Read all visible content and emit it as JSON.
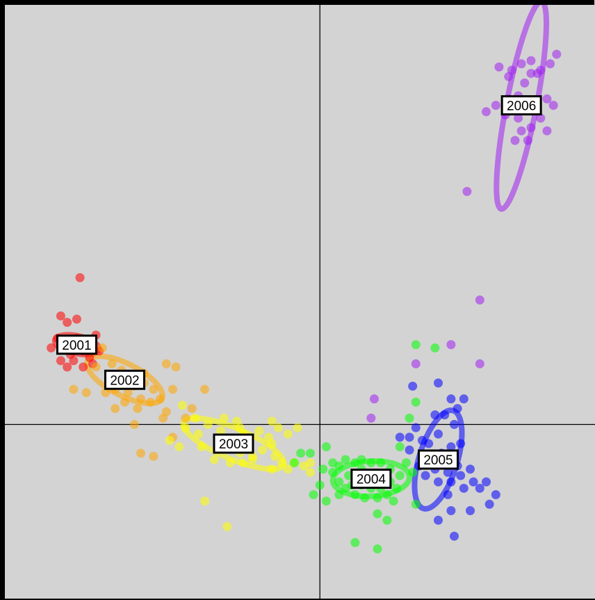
{
  "chart_data": {
    "type": "scatter",
    "background": "#d3d3d3",
    "axes_lines": "x=0 and y=0 reference lines",
    "grid": false,
    "xlim": [
      -1.0,
      0.86
    ],
    "ylim": [
      -0.55,
      1.33
    ],
    "series": [
      {
        "name": "2001",
        "color": "#ff0000",
        "center": [
          -0.76,
          0.25
        ],
        "ellipse": {
          "rx": 0.07,
          "ry": 0.028,
          "angle": 12
        },
        "points": [
          [
            -0.75,
            0.46
          ],
          [
            -0.81,
            0.34
          ],
          [
            -0.79,
            0.32
          ],
          [
            -0.76,
            0.33
          ],
          [
            -0.7,
            0.28
          ],
          [
            -0.8,
            0.24
          ],
          [
            -0.78,
            0.22
          ],
          [
            -0.74,
            0.23
          ],
          [
            -0.72,
            0.21
          ],
          [
            -0.77,
            0.2
          ],
          [
            -0.79,
            0.18
          ],
          [
            -0.74,
            0.18
          ],
          [
            -0.73,
            0.26
          ],
          [
            -0.82,
            0.27
          ],
          [
            -0.84,
            0.24
          ],
          [
            -0.69,
            0.23
          ],
          [
            -0.81,
            0.2
          ],
          [
            -0.71,
            0.19
          ],
          [
            -0.76,
            0.27
          ]
        ]
      },
      {
        "name": "2002",
        "color": "#ffa500",
        "center": [
          -0.61,
          0.14
        ],
        "ellipse": {
          "rx": 0.13,
          "ry": 0.05,
          "angle": 27
        },
        "points": [
          [
            -0.68,
            0.24
          ],
          [
            -0.7,
            0.18
          ],
          [
            -0.65,
            0.19
          ],
          [
            -0.63,
            0.14
          ],
          [
            -0.58,
            0.12
          ],
          [
            -0.55,
            0.13
          ],
          [
            -0.52,
            0.11
          ],
          [
            -0.56,
            0.08
          ],
          [
            -0.6,
            0.1
          ],
          [
            -0.64,
            0.11
          ],
          [
            -0.67,
            0.1
          ],
          [
            -0.73,
            0.1
          ],
          [
            -0.77,
            0.11
          ],
          [
            -0.61,
            0.07
          ],
          [
            -0.57,
            0.05
          ],
          [
            -0.53,
            0.07
          ],
          [
            -0.5,
            0.08
          ],
          [
            -0.46,
            0.11
          ],
          [
            -0.45,
            0.18
          ],
          [
            -0.48,
            0.19
          ],
          [
            -0.4,
            0.05
          ],
          [
            -0.36,
            0.11
          ],
          [
            -0.62,
            0.17
          ],
          [
            -0.66,
            0.15
          ],
          [
            -0.55,
            0.16
          ],
          [
            -0.64,
            0.05
          ],
          [
            -0.48,
            0.04
          ],
          [
            -0.58,
            0.0
          ],
          [
            -0.56,
            -0.09
          ],
          [
            -0.52,
            -0.1
          ],
          [
            -0.49,
            0.02
          ],
          [
            -0.42,
            0.02
          ],
          [
            -0.46,
            -0.04
          ]
        ]
      },
      {
        "name": "2003",
        "color": "#ffff00",
        "center": [
          -0.27,
          -0.06
        ],
        "ellipse": {
          "rx": 0.17,
          "ry": 0.048,
          "angle": 23
        },
        "points": [
          [
            -0.43,
            0.06
          ],
          [
            -0.39,
            0.02
          ],
          [
            -0.42,
            -0.01
          ],
          [
            -0.38,
            -0.03
          ],
          [
            -0.35,
            -0.0
          ],
          [
            -0.31,
            -0.02
          ],
          [
            -0.32,
            -0.07
          ],
          [
            -0.28,
            -0.06
          ],
          [
            -0.24,
            -0.03
          ],
          [
            -0.22,
            -0.05
          ],
          [
            -0.25,
            -0.09
          ],
          [
            -0.21,
            -0.1
          ],
          [
            -0.18,
            -0.08
          ],
          [
            -0.16,
            -0.04
          ],
          [
            -0.19,
            -0.02
          ],
          [
            -0.14,
            -0.1
          ],
          [
            -0.12,
            -0.12
          ],
          [
            -0.15,
            -0.14
          ],
          [
            -0.1,
            -0.14
          ],
          [
            -0.08,
            -0.12
          ],
          [
            -0.05,
            -0.13
          ],
          [
            -0.28,
            -0.12
          ],
          [
            -0.33,
            -0.11
          ],
          [
            -0.37,
            -0.07
          ],
          [
            -0.44,
            -0.07
          ],
          [
            -0.47,
            -0.05
          ],
          [
            -0.26,
            0.01
          ],
          [
            -0.3,
            0.02
          ],
          [
            -0.25,
            -0.01
          ],
          [
            -0.15,
            0.01
          ],
          [
            -0.13,
            -0.01
          ],
          [
            -0.1,
            -0.03
          ],
          [
            -0.07,
            -0.01
          ],
          [
            -0.03,
            -0.12
          ],
          [
            -0.36,
            -0.24
          ],
          [
            -0.29,
            -0.32
          ],
          [
            -0.21,
            -0.11
          ],
          [
            -0.24,
            -0.12
          ],
          [
            -0.03,
            -0.15
          ],
          [
            -0.15,
            -0.06
          ]
        ]
      },
      {
        "name": "2004",
        "color": "#00ff00",
        "center": [
          0.16,
          -0.17
        ],
        "ellipse": {
          "rx": 0.12,
          "ry": 0.055,
          "angle": -3
        },
        "points": [
          [
            0.06,
            -0.13
          ],
          [
            0.08,
            -0.11
          ],
          [
            0.11,
            -0.12
          ],
          [
            0.13,
            -0.11
          ],
          [
            0.16,
            -0.12
          ],
          [
            0.19,
            -0.12
          ],
          [
            0.22,
            -0.14
          ],
          [
            0.25,
            -0.16
          ],
          [
            0.24,
            -0.2
          ],
          [
            0.21,
            -0.22
          ],
          [
            0.18,
            -0.23
          ],
          [
            0.14,
            -0.23
          ],
          [
            0.11,
            -0.22
          ],
          [
            0.08,
            -0.2
          ],
          [
            0.06,
            -0.18
          ],
          [
            0.09,
            -0.16
          ],
          [
            0.12,
            -0.16
          ],
          [
            0.15,
            -0.17
          ],
          [
            0.18,
            -0.18
          ],
          [
            0.2,
            -0.17
          ],
          [
            0.13,
            -0.19
          ],
          [
            0.1,
            -0.19
          ],
          [
            0.16,
            -0.2
          ],
          [
            0.19,
            -0.2
          ],
          [
            0.22,
            -0.18
          ],
          [
            0.04,
            -0.15
          ],
          [
            0.01,
            -0.14
          ],
          [
            0.0,
            -0.19
          ],
          [
            -0.02,
            -0.22
          ],
          [
            0.02,
            -0.07
          ],
          [
            -0.03,
            -0.09
          ],
          [
            -0.06,
            -0.09
          ],
          [
            -0.08,
            -0.12
          ],
          [
            0.02,
            -0.24
          ],
          [
            0.18,
            -0.28
          ],
          [
            0.23,
            -0.24
          ],
          [
            0.21,
            -0.3
          ],
          [
            0.25,
            -0.07
          ],
          [
            0.27,
            -0.12
          ],
          [
            0.29,
            -0.15
          ],
          [
            0.3,
            -0.25
          ],
          [
            0.28,
            0.02
          ],
          [
            0.3,
            0.07
          ],
          [
            0.3,
            0.25
          ],
          [
            0.36,
            0.24
          ],
          [
            0.11,
            -0.37
          ],
          [
            0.18,
            -0.39
          ],
          [
            0.06,
            -0.22
          ],
          [
            0.13,
            -0.14
          ],
          [
            0.04,
            -0.12
          ]
        ]
      },
      {
        "name": "2005",
        "color": "#0000ff",
        "center": [
          0.37,
          -0.11
        ],
        "ellipse": {
          "rx": 0.16,
          "ry": 0.06,
          "angle": -73
        },
        "points": [
          [
            0.41,
            0.08
          ],
          [
            0.45,
            0.08
          ],
          [
            0.43,
            0.05
          ],
          [
            0.39,
            0.03
          ],
          [
            0.42,
            0.0
          ],
          [
            0.37,
            -0.03
          ],
          [
            0.32,
            -0.05
          ],
          [
            0.34,
            -0.1
          ],
          [
            0.38,
            -0.09
          ],
          [
            0.41,
            -0.07
          ],
          [
            0.44,
            -0.06
          ],
          [
            0.42,
            -0.11
          ],
          [
            0.4,
            -0.15
          ],
          [
            0.36,
            -0.14
          ],
          [
            0.33,
            -0.16
          ],
          [
            0.37,
            -0.18
          ],
          [
            0.41,
            -0.18
          ],
          [
            0.44,
            -0.16
          ],
          [
            0.47,
            -0.14
          ],
          [
            0.48,
            -0.18
          ],
          [
            0.45,
            -0.2
          ],
          [
            0.5,
            -0.2
          ],
          [
            0.52,
            -0.18
          ],
          [
            0.55,
            -0.22
          ],
          [
            0.53,
            -0.25
          ],
          [
            0.28,
            -0.04
          ],
          [
            0.25,
            -0.04
          ],
          [
            0.28,
            -0.08
          ],
          [
            0.31,
            -0.13
          ],
          [
            0.3,
            -0.01
          ],
          [
            0.36,
            0.03
          ],
          [
            0.4,
            -0.22
          ],
          [
            0.37,
            -0.3
          ],
          [
            0.41,
            -0.27
          ],
          [
            0.42,
            -0.35
          ],
          [
            0.47,
            -0.27
          ],
          [
            0.29,
            0.12
          ],
          [
            0.37,
            0.13
          ],
          [
            0.39,
            -0.12
          ],
          [
            0.34,
            -0.06
          ],
          [
            0.36,
            -0.12
          ],
          [
            0.43,
            -0.13
          ]
        ]
      },
      {
        "name": "2006",
        "color": "#a020f0",
        "center": [
          0.63,
          1.0
        ],
        "ellipse": {
          "rx": 0.33,
          "ry": 0.047,
          "angle": -79
        },
        "points": [
          [
            0.56,
            1.12
          ],
          [
            0.6,
            1.11
          ],
          [
            0.63,
            1.13
          ],
          [
            0.66,
            1.14
          ],
          [
            0.68,
            1.1
          ],
          [
            0.64,
            1.07
          ],
          [
            0.62,
            1.03
          ],
          [
            0.59,
            1.02
          ],
          [
            0.55,
            1.0
          ],
          [
            0.58,
            0.97
          ],
          [
            0.62,
            0.96
          ],
          [
            0.65,
            0.99
          ],
          [
            0.68,
            1.01
          ],
          [
            0.71,
            1.02
          ],
          [
            0.69,
            0.96
          ],
          [
            0.66,
            0.93
          ],
          [
            0.63,
            0.92
          ],
          [
            0.61,
            0.89
          ],
          [
            0.65,
            0.89
          ],
          [
            0.71,
            0.92
          ],
          [
            0.73,
            1.0
          ],
          [
            0.72,
            1.13
          ],
          [
            0.74,
            1.16
          ],
          [
            0.69,
            1.11
          ],
          [
            0.59,
            1.09
          ],
          [
            0.52,
            0.98
          ],
          [
            0.66,
            1.1
          ],
          [
            0.62,
            1.0
          ],
          [
            0.46,
            0.73
          ],
          [
            0.5,
            0.39
          ],
          [
            0.41,
            0.25
          ],
          [
            0.5,
            0.19
          ],
          [
            0.17,
            0.08
          ],
          [
            0.16,
            0.02
          ],
          [
            0.3,
            0.19
          ]
        ]
      }
    ]
  }
}
